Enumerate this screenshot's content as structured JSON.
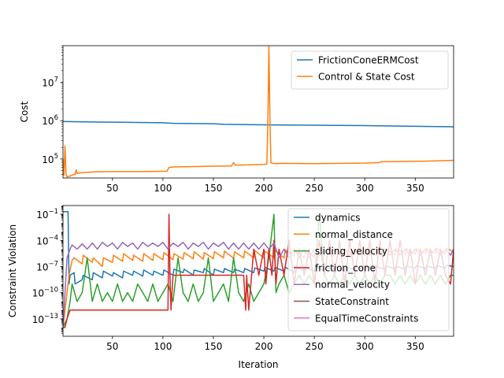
{
  "chart_data": [
    {
      "type": "line",
      "ylabel": "Cost",
      "xlabel": "",
      "xlim": [
        1,
        388
      ],
      "ylim": [
        32000,
        90000000
      ],
      "yscale": "log",
      "xticks": [
        50,
        100,
        150,
        200,
        250,
        300,
        350
      ],
      "xtick_labels": [
        "50",
        "100",
        "150",
        "200",
        "250",
        "300",
        "350"
      ],
      "yticks": [
        100000,
        1000000,
        10000000
      ],
      "ytick_labels": [
        "10^5",
        "10^6",
        "10^7"
      ],
      "legend_position": "upper-right",
      "grid": false,
      "series": [
        {
          "name": "FrictionConeERMCost",
          "color": "#1f77b4",
          "x": [
            1,
            10,
            50,
            100,
            110,
            150,
            160,
            200,
            220,
            250,
            300,
            350,
            388
          ],
          "y": [
            950000,
            940000,
            910000,
            880000,
            850000,
            830000,
            800000,
            780000,
            770000,
            760000,
            740000,
            710000,
            690000
          ]
        },
        {
          "name": "Control & State Cost",
          "color": "#ff7f0e",
          "x": [
            1,
            2,
            3,
            4,
            5,
            6,
            8,
            10,
            13,
            14,
            15,
            20,
            30,
            50,
            80,
            104,
            106,
            110,
            150,
            168,
            170,
            172,
            200,
            203,
            204,
            205,
            206,
            207,
            210,
            220,
            250,
            300,
            310,
            314,
            316,
            330,
            360,
            388
          ],
          "y": [
            100000,
            38000,
            220000,
            40000,
            34000,
            35000,
            36000,
            38000,
            40000,
            52000,
            42000,
            44000,
            46000,
            47000,
            47000,
            48000,
            60000,
            62000,
            65000,
            66000,
            80000,
            69000,
            72000,
            74000,
            1000000,
            90000000,
            1200000,
            80000,
            76000,
            77000,
            76000,
            78000,
            80000,
            80000,
            85000,
            86000,
            88000,
            92000
          ]
        }
      ]
    },
    {
      "type": "line",
      "ylabel": "Constraint Violation",
      "xlabel": "Iteration",
      "xlim": [
        1,
        388
      ],
      "ylim": [
        1e-15,
        1.0
      ],
      "yscale": "log",
      "xticks": [
        50,
        100,
        150,
        200,
        250,
        300,
        350
      ],
      "xtick_labels": [
        "50",
        "100",
        "150",
        "200",
        "250",
        "300",
        "350"
      ],
      "yticks": [
        0.1,
        0.0001,
        1e-07,
        1e-10,
        1e-13
      ],
      "ytick_labels": [
        "10^-1",
        "10^-4",
        "10^-7",
        "10^-10",
        "10^-13"
      ],
      "legend_position": "upper-right",
      "grid": false,
      "series": [
        {
          "name": "dynamics",
          "color": "#1f77b4",
          "x": [
            1,
            2,
            3,
            4,
            5,
            6,
            7,
            8,
            12,
            13,
            20,
            21,
            30,
            31,
            40,
            41,
            50,
            51,
            60,
            61,
            70,
            71,
            80,
            81,
            90,
            91,
            100,
            101,
            110,
            111,
            120,
            121,
            130,
            131,
            140,
            141,
            150,
            151,
            160,
            161,
            170,
            171,
            180,
            181,
            190,
            191,
            200,
            201,
            210,
            211,
            220,
            221,
            230,
            231,
            240,
            241,
            250,
            251,
            260,
            261,
            270,
            271,
            280,
            281,
            290,
            291,
            300,
            301,
            310,
            311,
            320,
            321,
            330,
            331,
            340,
            341,
            350,
            351,
            360,
            361,
            370,
            371,
            380,
            381,
            388
          ],
          "y": [
            0.2,
            0.2,
            0.2,
            0.2,
            0.2,
            0.2,
            1e-09,
            1e-08,
            2e-08,
            1e-09,
            3e-09,
            1e-08,
            3e-09,
            2e-08,
            5e-09,
            3e-08,
            8e-09,
            2e-08,
            5e-09,
            3e-08,
            1e-08,
            3e-08,
            8e-09,
            4e-08,
            1e-08,
            3e-08,
            1e-08,
            4e-08,
            1e-08,
            5e-08,
            2e-08,
            5e-08,
            1e-08,
            4e-08,
            2e-08,
            6e-08,
            1e-08,
            5e-08,
            2e-08,
            6e-08,
            2e-08,
            5e-08,
            2e-08,
            6e-08,
            2e-08,
            7e-08,
            3e-08,
            8e-08,
            3e-08,
            8e-08,
            3e-08,
            9e-08,
            2e-08,
            1e-07,
            3e-08,
            8e-08,
            3e-08,
            1e-07,
            3e-08,
            9e-08,
            4e-08,
            1e-07,
            3e-08,
            1e-07,
            4e-08,
            1e-07,
            5e-08,
            1.2e-07,
            4e-08,
            1e-07,
            5e-08,
            1.2e-07,
            5e-08,
            1.1e-07,
            5e-08,
            1.2e-07,
            6e-08,
            1.3e-07,
            6e-08,
            1.2e-07,
            6e-08,
            1.3e-07,
            7e-08,
            1.4e-07,
            1e-07
          ]
        },
        {
          "name": "normal_distance",
          "color": "#ff7f0e",
          "x": [
            1,
            7,
            10,
            12,
            20,
            21,
            30,
            31,
            40,
            41,
            50,
            51,
            60,
            61,
            70,
            71,
            80,
            81,
            90,
            91,
            100,
            101,
            110,
            111,
            120,
            121,
            130,
            131,
            140,
            141,
            150,
            151,
            160,
            161,
            170,
            171,
            180,
            181,
            190,
            191,
            200,
            201,
            210,
            211,
            220,
            221,
            230,
            231,
            240,
            241,
            250,
            251,
            260,
            261,
            270,
            271,
            280,
            281,
            290,
            291,
            300,
            301,
            310,
            311,
            320,
            321,
            330,
            331,
            340,
            341,
            350,
            351,
            360,
            361,
            370,
            371,
            380,
            381,
            388
          ],
          "y": [
            1e-14,
            1e-08,
            5e-07,
            1e-06,
            2e-07,
            2e-06,
            3e-07,
            1e-06,
            1e-07,
            1e-06,
            3e-07,
            2e-06,
            4e-07,
            3e-06,
            5e-07,
            2e-06,
            4e-07,
            3e-06,
            5e-07,
            3e-06,
            6e-07,
            4e-06,
            6e-07,
            3e-06,
            7e-07,
            4e-06,
            8e-07,
            5e-06,
            7e-07,
            4e-06,
            8e-07,
            5e-06,
            1e-06,
            6e-06,
            9e-07,
            5e-06,
            1e-06,
            6e-06,
            1e-06,
            7e-06,
            1e-06,
            6e-06,
            1e-06,
            7e-06,
            1e-06,
            8e-06,
            1.5e-06,
            8e-06,
            1e-06,
            6e-06,
            1.2e-06,
            7e-06,
            1.5e-06,
            8e-06,
            1.5e-06,
            9e-06,
            1.5e-06,
            8e-06,
            2e-06,
            9e-06,
            2e-06,
            1e-05,
            2e-06,
            1e-05,
            2e-06,
            1e-05,
            2e-06,
            1.1e-05,
            2.5e-06,
            1.2e-05,
            2.5e-06,
            1.1e-05,
            3e-06,
            1.2e-05,
            3e-06,
            1.3e-05,
            3e-06,
            1.3e-05,
            5e-06
          ]
        },
        {
          "name": "sliding_velocity",
          "color": "#2ca02c",
          "x": [
            1,
            5,
            8,
            10,
            15,
            20,
            25,
            30,
            35,
            40,
            45,
            50,
            55,
            60,
            65,
            70,
            75,
            80,
            85,
            90,
            95,
            100,
            105,
            110,
            115,
            120,
            125,
            130,
            135,
            140,
            145,
            150,
            155,
            160,
            165,
            170,
            175,
            180,
            185,
            190,
            195,
            200,
            205,
            210,
            212,
            215,
            220,
            225,
            230,
            235,
            240,
            245,
            250,
            255,
            260,
            265,
            270,
            275,
            280,
            285,
            290,
            295,
            300,
            305,
            310,
            315,
            320,
            325,
            330,
            335,
            340,
            345,
            350,
            355,
            360,
            365,
            370,
            375,
            380,
            385,
            388
          ],
          "y": [
            1e-14,
            1e-13,
            1e-11,
            1e-09,
            1e-11,
            1e-10,
            1e-06,
            1e-11,
            1e-09,
            1e-11,
            1e-10,
            1e-11,
            1e-09,
            1e-11,
            1e-10,
            1e-11,
            1e-09,
            1e-10,
            1e-11,
            1e-09,
            1e-11,
            1e-10,
            1e-09,
            1e-11,
            1e-06,
            1e-10,
            1e-11,
            1e-09,
            1e-11,
            1e-10,
            1e-06,
            1e-11,
            1e-10,
            1e-09,
            1e-11,
            1e-06,
            1e-10,
            1e-11,
            1e-09,
            1e-11,
            1e-10,
            1e-09,
            1e-06,
            0.1,
            1e-10,
            1e-09,
            1e-08,
            1e-10,
            1e-09,
            1e-08,
            1e-09,
            1e-08,
            1e-09,
            0.1,
            1e-08,
            1e-09,
            1e-08,
            1e-09,
            1e-08,
            1e-09,
            1e-08,
            1e-09,
            1e-08,
            1e-09,
            1e-08,
            1e-09,
            1e-08,
            1e-08,
            1e-09,
            1e-08,
            1e-09,
            1e-08,
            1e-09,
            1e-08,
            1e-09,
            1e-08,
            1e-09,
            1e-08,
            1e-09,
            1e-08,
            1e-08
          ]
        },
        {
          "name": "friction_cone",
          "color": "#d62728",
          "x": [
            1,
            3,
            5,
            8,
            10,
            12,
            15,
            20,
            30,
            40,
            50,
            60,
            70,
            80,
            90,
            100,
            105,
            106,
            107,
            108,
            110,
            120,
            130,
            140,
            150,
            160,
            170,
            180,
            182,
            183,
            185,
            190,
            195,
            200,
            202,
            205,
            208,
            210,
            212,
            215,
            220,
            225,
            230,
            235,
            240,
            245,
            250,
            255,
            260,
            265,
            270,
            275,
            280,
            285,
            290,
            295,
            300,
            305,
            310,
            315,
            320,
            325,
            330,
            335,
            340,
            345,
            350,
            355,
            360,
            365,
            370,
            375,
            380,
            385,
            388
          ],
          "y": [
            1e-14,
            1e-14,
            1e-13,
            1e-12,
            1e-12,
            1e-12,
            1e-12,
            1e-12,
            1e-12,
            1e-12,
            1e-12,
            1e-12,
            1e-12,
            1e-12,
            1e-12,
            1e-12,
            1e-12,
            0.1,
            1e-08,
            1e-12,
            1e-08,
            1e-08,
            1e-08,
            1e-08,
            1e-08,
            1e-08,
            1e-08,
            1e-08,
            1e-12,
            1e-08,
            1e-12,
            1e-05,
            1e-08,
            1e-05,
            1e-09,
            1e-05,
            1e-08,
            0.0001,
            1e-09,
            1e-05,
            1e-08,
            0.0001,
            1e-09,
            1e-05,
            1e-08,
            1e-05,
            1e-09,
            0.0001,
            1e-08,
            0.0001,
            1e-08,
            0.0001,
            1e-09,
            0.0001,
            1e-08,
            0.0001,
            1e-08,
            0.0001,
            1e-09,
            0.0001,
            1e-08,
            0.0001,
            1e-08,
            0.0001,
            1e-08,
            1e-05,
            1e-09,
            1e-05,
            1e-08,
            1e-05,
            1e-08,
            1e-05,
            1e-08,
            1e-09,
            1e-05
          ]
        },
        {
          "name": "normal_velocity",
          "color": "#9467bd",
          "x": [
            1,
            5,
            8,
            10,
            15,
            20,
            25,
            30,
            35,
            40,
            45,
            50,
            55,
            60,
            65,
            70,
            75,
            80,
            85,
            90,
            95,
            100,
            105,
            110,
            115,
            120,
            125,
            130,
            135,
            140,
            145,
            150,
            155,
            160,
            165,
            170,
            175,
            180,
            185,
            190,
            195,
            200,
            205,
            210,
            215,
            220,
            225,
            230,
            235,
            240,
            245,
            250,
            255,
            260,
            265,
            270,
            275,
            280,
            285,
            290,
            295,
            300,
            305,
            310,
            315,
            320,
            325,
            330,
            335,
            340,
            345,
            350,
            355,
            360,
            365,
            370,
            375,
            380,
            385,
            388
          ],
          "y": [
            1e-14,
            1e-06,
            1e-05,
            3e-05,
            1e-05,
            4e-05,
            1e-05,
            5e-05,
            1e-05,
            6e-05,
            2e-05,
            5e-05,
            1e-05,
            6e-05,
            2e-05,
            5e-05,
            1e-05,
            6e-05,
            2e-05,
            5e-05,
            2e-05,
            6e-05,
            1e-05,
            5e-05,
            2e-05,
            6e-05,
            1e-05,
            5e-05,
            2e-05,
            6e-05,
            1e-05,
            5e-05,
            2e-05,
            6e-05,
            1e-05,
            5e-05,
            1e-05,
            5e-05,
            1e-05,
            5e-05,
            1e-05,
            5e-05,
            1e-05,
            5e-05,
            1e-06,
            1e-05,
            1e-06,
            1e-05,
            1e-06,
            1e-05,
            1e-06,
            1e-05,
            2e-06,
            1e-05,
            2e-06,
            1e-05,
            2e-06,
            1e-05,
            2e-06,
            1e-05,
            2e-06,
            1e-05,
            2e-06,
            1e-05,
            2e-06,
            1e-05,
            2e-06,
            1e-05,
            2e-06,
            1e-05,
            2e-06,
            1e-05,
            2e-06,
            1e-05,
            2e-06,
            1e-05,
            2e-06,
            1e-05,
            2e-06,
            1e-05
          ]
        },
        {
          "name": "StateConstraint",
          "color": "#8c564b",
          "x": [],
          "y": []
        },
        {
          "name": "EqualTimeConstraints",
          "color": "#e377c2",
          "x": [],
          "y": []
        }
      ]
    }
  ]
}
